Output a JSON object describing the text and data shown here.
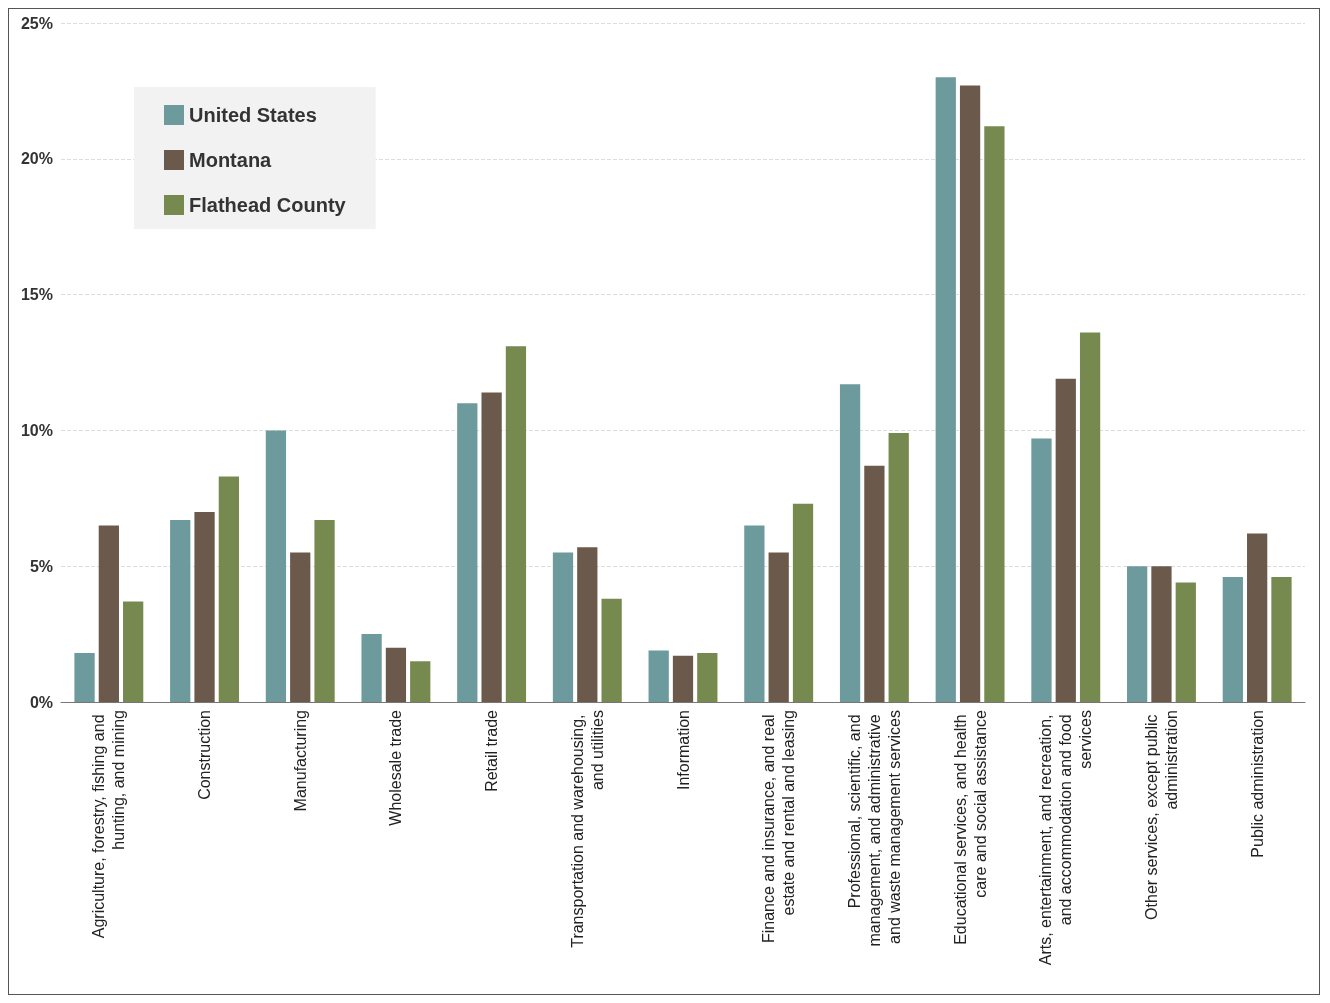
{
  "chart_data": {
    "type": "bar",
    "categories": [
      "Agriculture, forestry, fishing and hunting, and mining",
      "Construction",
      "Manufacturing",
      "Wholesale trade",
      "Retail trade",
      "Transportation and warehousing, and utilities",
      "Information",
      "Finance and insurance, and real estate and rental and leasing",
      "Professional, scientific, and management, and administrative and waste management services",
      "Educational services, and health care and social assistance",
      "Arts, entertainment, and recreation, and accommodation and food services",
      "Other services, except public administration",
      "Public administration"
    ],
    "series": [
      {
        "name": "United States",
        "color": "#6d9a9c",
        "values": [
          1.8,
          6.7,
          10.0,
          2.5,
          11.0,
          5.5,
          1.9,
          6.5,
          11.7,
          23.0,
          9.7,
          5.0,
          4.6
        ]
      },
      {
        "name": "Montana",
        "color": "#6b5a4c",
        "values": [
          6.5,
          7.0,
          5.5,
          2.0,
          11.4,
          5.7,
          1.7,
          5.5,
          8.7,
          22.7,
          11.9,
          5.0,
          6.2
        ]
      },
      {
        "name": "Flathead County",
        "color": "#76894f",
        "values": [
          3.7,
          8.3,
          6.7,
          1.5,
          13.1,
          3.8,
          1.8,
          7.3,
          9.9,
          21.2,
          13.6,
          4.4,
          4.6
        ]
      }
    ],
    "ylim": [
      0,
      25
    ],
    "yticks": [
      {
        "value": 0,
        "label": "0%"
      },
      {
        "value": 5,
        "label": "5%"
      },
      {
        "value": 10,
        "label": "10%"
      },
      {
        "value": 15,
        "label": "15%"
      },
      {
        "value": 20,
        "label": "20%"
      },
      {
        "value": 25,
        "label": "25%"
      }
    ],
    "grid": "y",
    "legend": "top left"
  }
}
